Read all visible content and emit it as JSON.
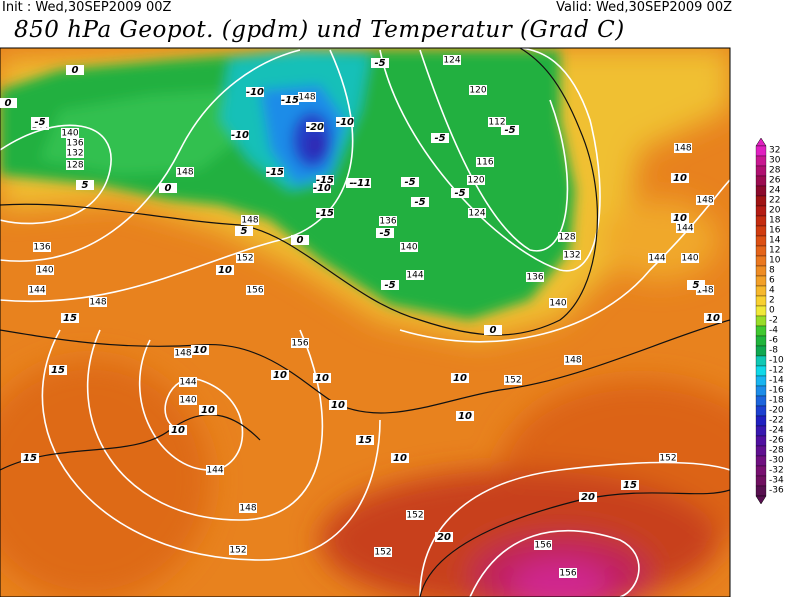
{
  "header": {
    "init": "Init : Wed,30SEP2009 00Z",
    "valid": "Valid: Wed,30SEP2009 00Z",
    "title": "850 hPa Geopot. (gpdm) und Temperatur (Grad C)"
  },
  "map": {
    "geopotential_labels": [
      "144",
      "140",
      "136",
      "132",
      "128",
      "148",
      "148",
      "152",
      "156",
      "156",
      "148",
      "144",
      "140",
      "144",
      "148",
      "152",
      "152",
      "152",
      "156",
      "156",
      "152",
      "148",
      "152",
      "140",
      "136",
      "132",
      "128",
      "124",
      "120",
      "116",
      "112",
      "120",
      "124",
      "148",
      "144",
      "140",
      "136",
      "136",
      "140",
      "144",
      "148",
      "144",
      "148",
      "144",
      "140",
      "148",
      "148"
    ],
    "temperature_labels": [
      "-5",
      "-5",
      "0",
      "0",
      "5",
      "0",
      "-10",
      "-15",
      "-20",
      "-10",
      "-10",
      "-15",
      "-15",
      "-10",
      "-15",
      "-11",
      "-5",
      "-5",
      "-5",
      "-5",
      "-5",
      "-5",
      "-5",
      "-5",
      "0",
      "0",
      "5",
      "10",
      "10",
      "10",
      "10",
      "10",
      "10",
      "10",
      "15",
      "15",
      "15",
      "10",
      "10",
      "15",
      "10",
      "15",
      "20",
      "20",
      "10",
      "10",
      "10",
      "5"
    ]
  },
  "colorbar": {
    "labels": [
      "32",
      "30",
      "28",
      "26",
      "24",
      "22",
      "20",
      "18",
      "16",
      "14",
      "12",
      "10",
      "8",
      "6",
      "4",
      "2",
      "0",
      "-2",
      "-4",
      "-6",
      "-8",
      "-10",
      "-12",
      "-14",
      "-16",
      "-18",
      "-20",
      "-22",
      "-24",
      "-26",
      "-28",
      "-30",
      "-32",
      "-34",
      "-36"
    ],
    "colors": [
      "#e020c0",
      "#c81890",
      "#b01070",
      "#9c0c50",
      "#8c0a2c",
      "#a01414",
      "#b41c14",
      "#c42c10",
      "#d03c10",
      "#dc5014",
      "#e4641a",
      "#ea7820",
      "#ee8c24",
      "#f2a028",
      "#f6b82c",
      "#f8d030",
      "#f0e838",
      "#98dc28",
      "#40c830",
      "#20b43c",
      "#10a850",
      "#10c8b4",
      "#10d8e8",
      "#18b4f0",
      "#1c8ce8",
      "#1c64dc",
      "#1c40d0",
      "#2020c0",
      "#3818b0",
      "#5010a0",
      "#601090",
      "#701080",
      "#781070",
      "#701060",
      "#581050"
    ]
  }
}
